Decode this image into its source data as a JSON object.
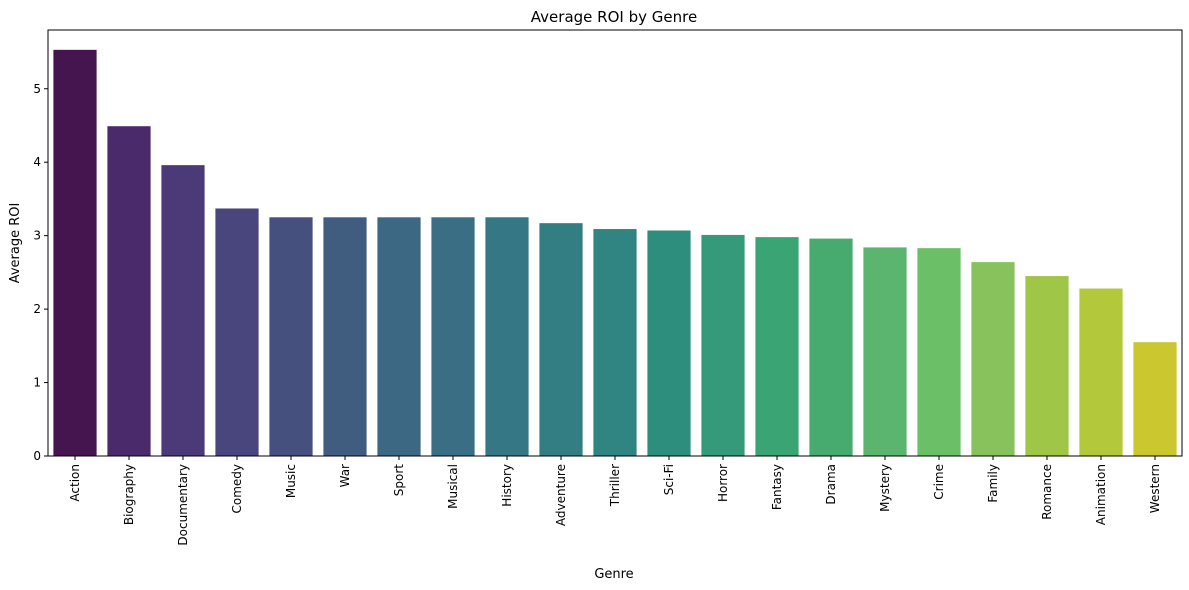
{
  "chart_data": {
    "type": "bar",
    "title": "Average ROI by Genre",
    "xlabel": "Genre",
    "ylabel": "Average ROI",
    "ylim": [
      0,
      5.8
    ],
    "yticks": [
      0,
      1,
      2,
      3,
      4,
      5
    ],
    "grid": false,
    "legend": "none",
    "categories": [
      "Action",
      "Biography",
      "Documentary",
      "Comedy",
      "Music",
      "War",
      "Sport",
      "Musical",
      "History",
      "Adventure",
      "Thriller",
      "Sci-Fi",
      "Horror",
      "Fantasy",
      "Drama",
      "Mystery",
      "Crime",
      "Family",
      "Romance",
      "Animation",
      "Western"
    ],
    "values": [
      5.53,
      4.49,
      3.96,
      3.37,
      3.25,
      3.25,
      3.25,
      3.25,
      3.25,
      3.17,
      3.09,
      3.07,
      3.01,
      2.98,
      2.96,
      2.84,
      2.83,
      2.64,
      2.45,
      2.28,
      1.55
    ],
    "colors": [
      "#44154f",
      "#4a2a6b",
      "#4c3a78",
      "#49467d",
      "#45507e",
      "#405d80",
      "#3d6883",
      "#3a6e84",
      "#367785",
      "#327e83",
      "#308582",
      "#2e8e7d",
      "#349a7a",
      "#3ba474",
      "#47ab70",
      "#5cb56e",
      "#6bbf67",
      "#87c25d",
      "#a0c648",
      "#b3c83a",
      "#cbc82f"
    ]
  }
}
